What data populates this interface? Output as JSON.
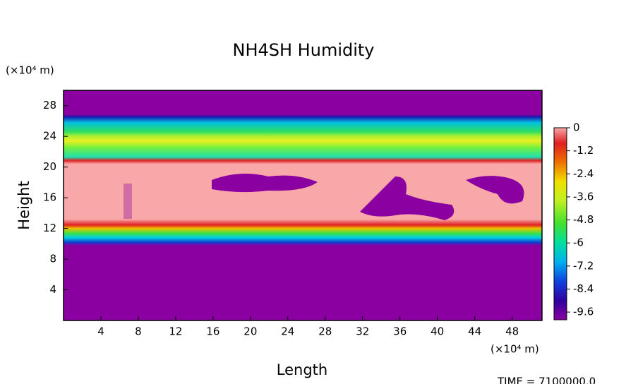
{
  "chart_data": {
    "type": "contour",
    "title": "NH4SH Humidity",
    "xlabel": "Length",
    "ylabel": "Height",
    "x_unit": "(×10⁴ m)",
    "y_unit": "(×10⁴ m)",
    "xlim": [
      0,
      51.2
    ],
    "xticks": [
      4,
      8,
      12,
      16,
      20,
      24,
      28,
      32,
      36,
      40,
      44,
      48
    ],
    "ylim": [
      0,
      30
    ],
    "yticks": [
      4,
      8,
      12,
      16,
      20,
      24,
      28
    ],
    "colorbar": {
      "clim": [
        -10,
        0
      ],
      "ticks": [
        0,
        -1.2,
        -2.4,
        -3.6,
        -4.8,
        -6,
        -7.2,
        -8.4,
        -9.6
      ]
    },
    "time_label": "TIME = 7100000.0"
  }
}
